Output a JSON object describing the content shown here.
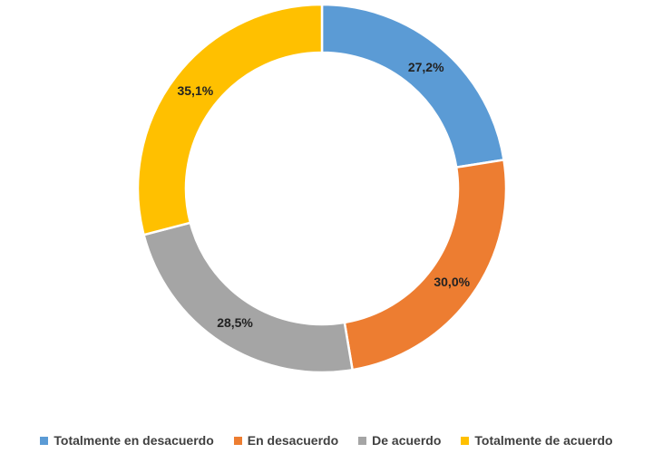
{
  "chart_data": {
    "type": "pie",
    "title": "",
    "categories": [
      "Totalmente en desacuerdo",
      "En desacuerdo",
      "De acuerdo",
      "Totalmente de acuerdo"
    ],
    "values": [
      27.2,
      30.0,
      28.5,
      35.1
    ],
    "labels": [
      "27,2%",
      "30,0%",
      "28,5%",
      "35,1%"
    ],
    "colors": [
      "#5B9BD5",
      "#ED7D31",
      "#A5A5A5",
      "#FFC000"
    ],
    "donut": true,
    "legend_position": "bottom"
  }
}
